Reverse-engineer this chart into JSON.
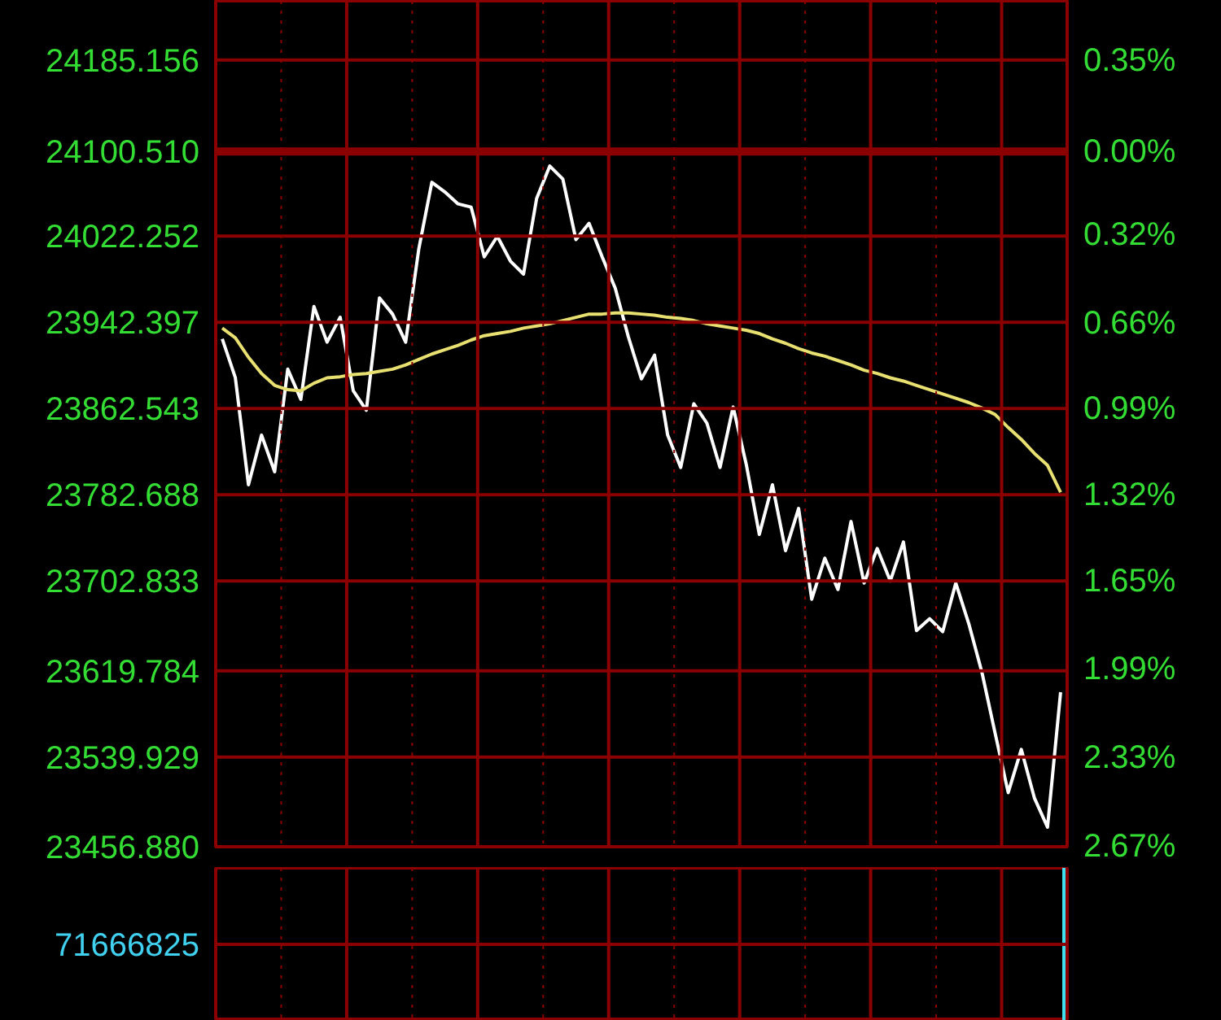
{
  "chart_data": [
    {
      "type": "line",
      "tick_labels": "y",
      "categories": [
        null,
        null,
        null,
        null,
        null,
        null,
        null,
        null,
        null,
        null,
        null,
        null,
        null,
        null,
        null,
        null,
        null,
        null,
        null,
        null,
        null,
        null,
        null,
        null,
        null,
        null,
        null,
        null,
        null,
        null,
        null,
        null,
        null,
        null,
        null,
        null,
        null,
        null,
        null,
        null,
        null,
        null,
        null,
        null,
        null,
        null,
        null,
        null,
        null,
        null,
        null,
        null,
        null,
        null,
        null,
        null,
        null,
        null,
        null,
        null,
        null,
        null,
        null,
        null,
        null
      ],
      "ylim": [
        23456.88,
        24240
      ],
      "yticks": [
        {
          "value": 24185.156,
          "label": "24185.156"
        },
        {
          "value": 24100.51,
          "label": "24100.510"
        },
        {
          "value": 24022.252,
          "label": "24022.252"
        },
        {
          "value": 23942.397,
          "label": "23942.397"
        },
        {
          "value": 23862.543,
          "label": "23862.543"
        },
        {
          "value": 23782.688,
          "label": "23782.688"
        },
        {
          "value": 23702.833,
          "label": "23702.833"
        },
        {
          "value": 23619.784,
          "label": "23619.784"
        },
        {
          "value": 23539.929,
          "label": "23539.929"
        },
        {
          "value": 23456.88,
          "label": "23456.880"
        }
      ],
      "y2lim": [
        -2.67,
        0.58
      ],
      "y2ticks": [
        {
          "value": 0.35,
          "label": "0.35%"
        },
        {
          "value": 0,
          "label": "0.00%"
        },
        {
          "value": -0.32,
          "label": "0.32%"
        },
        {
          "value": -0.66,
          "label": "0.66%"
        },
        {
          "value": -0.99,
          "label": "0.99%"
        },
        {
          "value": -1.32,
          "label": "1.32%"
        },
        {
          "value": -1.65,
          "label": "1.65%"
        },
        {
          "value": -1.99,
          "label": "1.99%"
        },
        {
          "value": -2.33,
          "label": "2.33%"
        },
        {
          "value": -2.67,
          "label": "2.67%"
        }
      ],
      "grid": true,
      "ref_lines": [
        {
          "axis": "y",
          "value": 24100.51,
          "color": "#8b0000"
        }
      ],
      "series": [
        {
          "color": "#ffffff",
          "values": [
            23927,
            23891,
            23792,
            23838,
            23804,
            23899,
            23871,
            23957,
            23924,
            23947,
            23879,
            23861,
            23965,
            23950,
            23924,
            24010,
            24072,
            24063,
            24052,
            24049,
            24003,
            24022,
            23999,
            23987,
            24057,
            24087,
            24075,
            24019,
            24034,
            24003,
            23974,
            23929,
            23890,
            23912,
            23838,
            23808,
            23867,
            23849,
            23808,
            23864,
            23811,
            23746,
            23792,
            23731,
            23770,
            23686,
            23724,
            23695,
            23758,
            23701,
            23733,
            23703,
            23739,
            23657,
            23668,
            23656,
            23701,
            23663,
            23618,
            23562,
            23507,
            23547,
            23502,
            23475,
            23600
          ]
        },
        {
          "color": "#e8e070",
          "values": [
            23937,
            23928,
            23910,
            23895,
            23884,
            23880,
            23879,
            23886,
            23891,
            23892,
            23894,
            23895,
            23897,
            23899,
            23903,
            23908,
            23913,
            23917,
            23921,
            23926,
            23930,
            23932,
            23934,
            23937,
            23939,
            23941,
            23944,
            23947,
            23950,
            23950,
            23951,
            23951,
            23950,
            23949,
            23947,
            23946,
            23944,
            23941,
            23939,
            23937,
            23935,
            23932,
            23927,
            23923,
            23918,
            23914,
            23911,
            23907,
            23903,
            23898,
            23895,
            23891,
            23888,
            23884,
            23880,
            23876,
            23872,
            23868,
            23863,
            23857,
            23845,
            23834,
            23821,
            23810,
            23785
          ]
        }
      ]
    },
    {
      "type": "other",
      "annotations": [
        "71666825"
      ]
    }
  ]
}
